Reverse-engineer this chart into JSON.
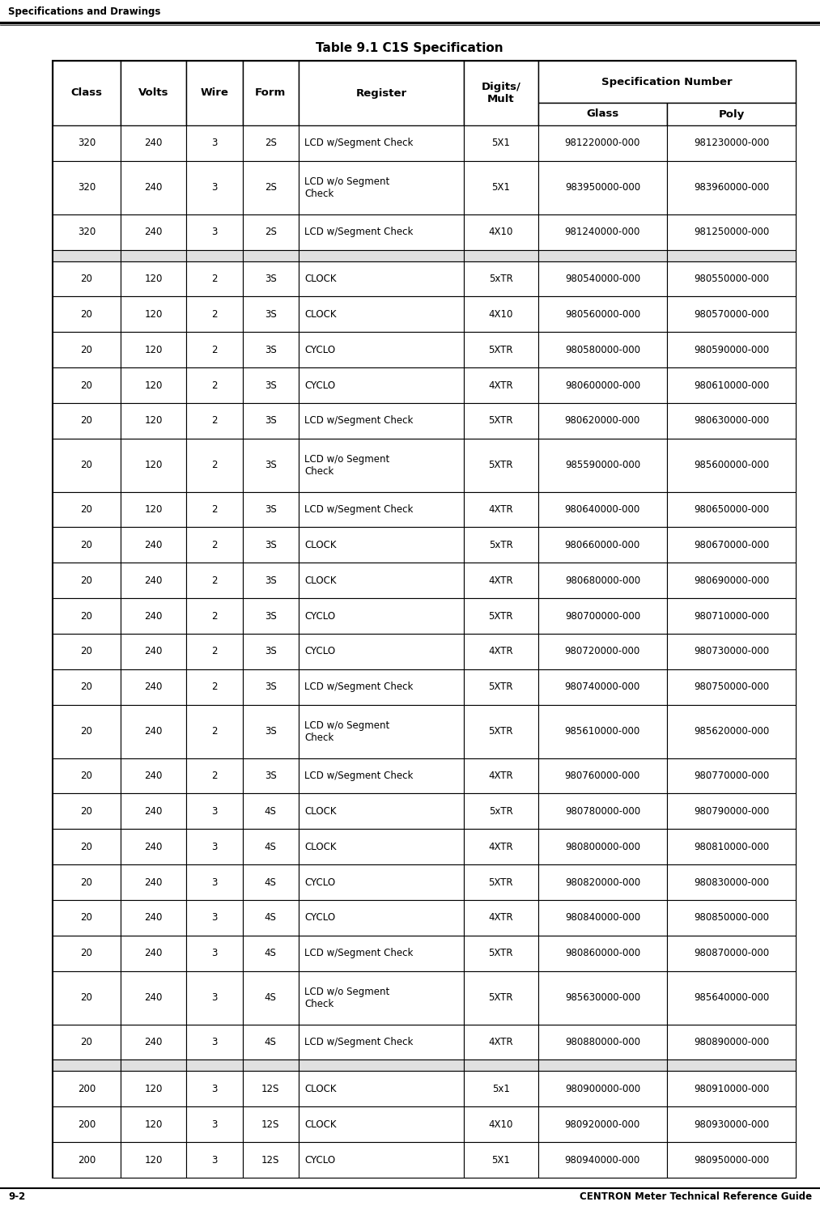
{
  "page_title": "Specifications and Drawings",
  "footer_left": "9-2",
  "footer_right": "CENTRON Meter Technical Reference Guide",
  "table_title": "Table 9.1 C1S Specification",
  "rows": [
    [
      "320",
      "240",
      "3",
      "2S",
      "LCD w/Segment Check",
      "5X1",
      "981220000-000",
      "981230000-000"
    ],
    [
      "320",
      "240",
      "3",
      "2S",
      "LCD w/o Segment\nCheck",
      "5X1",
      "983950000-000",
      "983960000-000"
    ],
    [
      "320",
      "240",
      "3",
      "2S",
      "LCD w/Segment Check",
      "4X10",
      "981240000-000",
      "981250000-000"
    ],
    [
      "",
      "",
      "",
      "",
      "",
      "",
      "",
      ""
    ],
    [
      "20",
      "120",
      "2",
      "3S",
      "CLOCK",
      "5xTR",
      "980540000-000",
      "980550000-000"
    ],
    [
      "20",
      "120",
      "2",
      "3S",
      "CLOCK",
      "4X10",
      "980560000-000",
      "980570000-000"
    ],
    [
      "20",
      "120",
      "2",
      "3S",
      "CYCLO",
      "5XTR",
      "980580000-000",
      "980590000-000"
    ],
    [
      "20",
      "120",
      "2",
      "3S",
      "CYCLO",
      "4XTR",
      "980600000-000",
      "980610000-000"
    ],
    [
      "20",
      "120",
      "2",
      "3S",
      "LCD w/Segment Check",
      "5XTR",
      "980620000-000",
      "980630000-000"
    ],
    [
      "20",
      "120",
      "2",
      "3S",
      "LCD w/o Segment\nCheck",
      "5XTR",
      "985590000-000",
      "985600000-000"
    ],
    [
      "20",
      "120",
      "2",
      "3S",
      "LCD w/Segment Check",
      "4XTR",
      "980640000-000",
      "980650000-000"
    ],
    [
      "20",
      "240",
      "2",
      "3S",
      "CLOCK",
      "5xTR",
      "980660000-000",
      "980670000-000"
    ],
    [
      "20",
      "240",
      "2",
      "3S",
      "CLOCK",
      "4XTR",
      "980680000-000",
      "980690000-000"
    ],
    [
      "20",
      "240",
      "2",
      "3S",
      "CYCLO",
      "5XTR",
      "980700000-000",
      "980710000-000"
    ],
    [
      "20",
      "240",
      "2",
      "3S",
      "CYCLO",
      "4XTR",
      "980720000-000",
      "980730000-000"
    ],
    [
      "20",
      "240",
      "2",
      "3S",
      "LCD w/Segment Check",
      "5XTR",
      "980740000-000",
      "980750000-000"
    ],
    [
      "20",
      "240",
      "2",
      "3S",
      "LCD w/o Segment\nCheck",
      "5XTR",
      "985610000-000",
      "985620000-000"
    ],
    [
      "20",
      "240",
      "2",
      "3S",
      "LCD w/Segment Check",
      "4XTR",
      "980760000-000",
      "980770000-000"
    ],
    [
      "20",
      "240",
      "3",
      "4S",
      "CLOCK",
      "5xTR",
      "980780000-000",
      "980790000-000"
    ],
    [
      "20",
      "240",
      "3",
      "4S",
      "CLOCK",
      "4XTR",
      "980800000-000",
      "980810000-000"
    ],
    [
      "20",
      "240",
      "3",
      "4S",
      "CYCLO",
      "5XTR",
      "980820000-000",
      "980830000-000"
    ],
    [
      "20",
      "240",
      "3",
      "4S",
      "CYCLO",
      "4XTR",
      "980840000-000",
      "980850000-000"
    ],
    [
      "20",
      "240",
      "3",
      "4S",
      "LCD w/Segment Check",
      "5XTR",
      "980860000-000",
      "980870000-000"
    ],
    [
      "20",
      "240",
      "3",
      "4S",
      "LCD w/o Segment\nCheck",
      "5XTR",
      "985630000-000",
      "985640000-000"
    ],
    [
      "20",
      "240",
      "3",
      "4S",
      "LCD w/Segment Check",
      "4XTR",
      "980880000-000",
      "980890000-000"
    ],
    [
      "",
      "",
      "",
      "",
      "",
      "",
      "",
      ""
    ],
    [
      "200",
      "120",
      "3",
      "12S",
      "CLOCK",
      "5x1",
      "980900000-000",
      "980910000-000"
    ],
    [
      "200",
      "120",
      "3",
      "12S",
      "CLOCK",
      "4X10",
      "980920000-000",
      "980930000-000"
    ],
    [
      "200",
      "120",
      "3",
      "12S",
      "CYCLO",
      "5X1",
      "980940000-000",
      "980950000-000"
    ]
  ],
  "separator_rows": [
    3,
    25
  ],
  "bg_color": "#ffffff",
  "sep_color": "#e0e0e0",
  "border_color": "#000000",
  "text_color": "#000000"
}
